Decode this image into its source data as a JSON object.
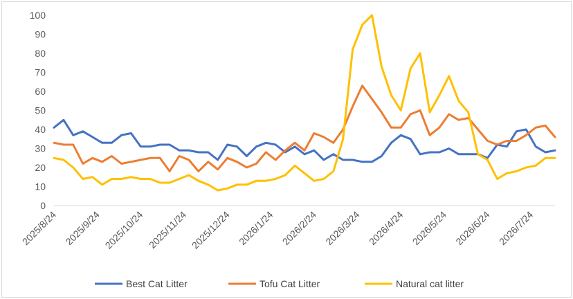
{
  "chart_data": {
    "type": "line",
    "title": "",
    "xlabel": "",
    "ylabel": "",
    "ylim": [
      0,
      100
    ],
    "yticks": [
      0,
      10,
      20,
      30,
      40,
      50,
      60,
      70,
      80,
      90,
      100
    ],
    "grid": false,
    "legend_position": "bottom",
    "x_tick_labels": [
      "2025/8/24",
      "2025/9/24",
      "2025/10/24",
      "2025/11/24",
      "2025/12/24",
      "2026/1/24",
      "2026/2/24",
      "2026/3/24",
      "2026/4/24",
      "2026/5/24",
      "2026/6/24",
      "2026/7/24"
    ],
    "points_per_tick": 4.5,
    "series": [
      {
        "name": "Best Cat Litter",
        "color": "#4472C4",
        "values": [
          41,
          45,
          37,
          39,
          36,
          33,
          33,
          37,
          38,
          31,
          31,
          32,
          32,
          29,
          29,
          28,
          28,
          24,
          32,
          31,
          26,
          31,
          33,
          32,
          28,
          31,
          27,
          29,
          24,
          27,
          24,
          24,
          23,
          23,
          26,
          33,
          37,
          35,
          27,
          28,
          28,
          30,
          27,
          27,
          27,
          25,
          32,
          31,
          39,
          40,
          31,
          28,
          29
        ]
      },
      {
        "name": "Tofu Cat Litter",
        "color": "#ED7D31",
        "values": [
          33,
          32,
          32,
          22,
          25,
          23,
          26,
          22,
          23,
          24,
          25,
          25,
          18,
          26,
          24,
          18,
          23,
          19,
          25,
          23,
          20,
          22,
          28,
          24,
          29,
          33,
          29,
          38,
          36,
          33,
          40,
          52,
          63,
          56,
          49,
          41,
          41,
          48,
          50,
          37,
          41,
          48,
          45,
          46,
          40,
          34,
          32,
          34,
          34,
          37,
          41,
          42,
          36
        ]
      },
      {
        "name": "Natural cat litter",
        "color": "#FFC000",
        "values": [
          25,
          24,
          20,
          14,
          15,
          11,
          14,
          14,
          15,
          14,
          14,
          12,
          12,
          14,
          16,
          13,
          11,
          8,
          9,
          11,
          11,
          13,
          13,
          14,
          16,
          21,
          17,
          13,
          14,
          18,
          35,
          82,
          95,
          100,
          73,
          58,
          50,
          72,
          80,
          49,
          58,
          68,
          55,
          49,
          27,
          24,
          14,
          17,
          18,
          20,
          21,
          25,
          25
        ]
      }
    ]
  }
}
